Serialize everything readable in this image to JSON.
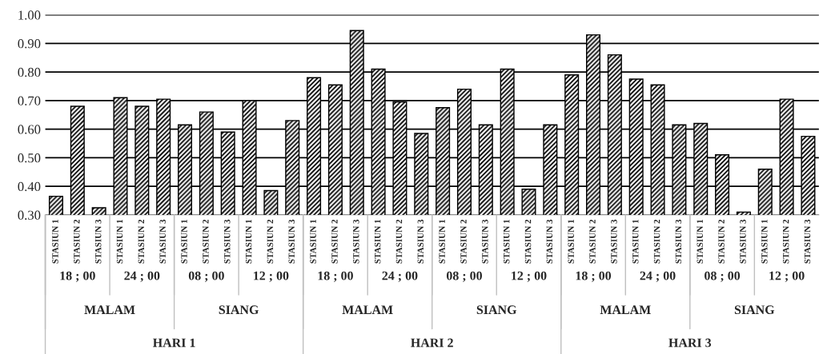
{
  "chart_data": {
    "type": "bar",
    "categories": [
      "STASIUN 1",
      "STASIUN 2",
      "STASIUN 3",
      "STASIUN 1",
      "STASIUN 2",
      "STASIUN 3",
      "STASIUN 1",
      "STASIUN 2",
      "STASIUN 3",
      "STASIUN 1",
      "STASIUN 2",
      "STASIUN 3",
      "STASIUN 1",
      "STASIUN 2",
      "STASIUN 3",
      "STASIUN 1",
      "STASIUN 2",
      "STASIUN 3",
      "STASIUN 1",
      "STASIUN 2",
      "STASIUN 3",
      "STASIUN 1",
      "STASIUN 2",
      "STASIUN 3",
      "STASIUN 1",
      "STASIUN 2",
      "STASIUN 3",
      "STASIUN 1",
      "STASIUN 2",
      "STASIUN 3",
      "STASIUN 1",
      "STASIUN 2",
      "STASIUN 3",
      "STASIUN 1",
      "STASIUN 2",
      "STASIUN 3"
    ],
    "values": [
      0.365,
      0.68,
      0.325,
      0.71,
      0.68,
      0.705,
      0.615,
      0.66,
      0.59,
      0.7,
      0.385,
      0.63,
      0.78,
      0.755,
      0.945,
      0.81,
      0.695,
      0.585,
      0.675,
      0.74,
      0.615,
      0.81,
      0.39,
      0.615,
      0.79,
      0.93,
      0.86,
      0.775,
      0.755,
      0.615,
      0.62,
      0.51,
      0.31,
      0.46,
      0.705,
      0.575
    ],
    "color": "#000000",
    "annotations": [
      "18 ; 00",
      "24 ; 00",
      "08 ; 00",
      "12 ; 00",
      "18 ; 00",
      "24 ; 00",
      "08 ; 00",
      "12 ; 00",
      "18 ; 00",
      "24 ; 00",
      "08 ; 00",
      "12 ; 00",
      "MALAM",
      "SIANG",
      "MALAM",
      "SIANG",
      "MALAM",
      "SIANG",
      "HARI 1",
      "HARI 2",
      "HARI 3"
    ],
    "ylim": [
      0.3,
      1.0
    ],
    "yticks": [
      {
        "value": 0.3,
        "label": "0.30"
      },
      {
        "value": 0.4,
        "label": "0.40"
      },
      {
        "value": 0.5,
        "label": "0.50"
      },
      {
        "value": 0.6,
        "label": "0.60"
      },
      {
        "value": 0.7,
        "label": "0.70"
      },
      {
        "value": 0.8,
        "label": "0.80"
      },
      {
        "value": 0.9,
        "label": "0.90"
      },
      {
        "value": 1.0,
        "label": "1.00"
      }
    ],
    "grid": "y"
  }
}
